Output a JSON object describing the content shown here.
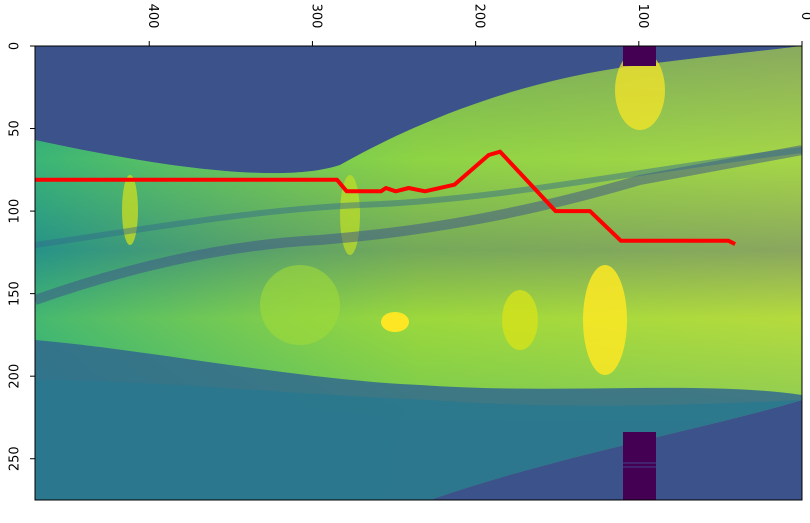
{
  "chart_data": {
    "type": "heatmap",
    "title": "",
    "xlabel": "",
    "ylabel": "",
    "colormap": "viridis",
    "xlim": [
      0,
      470
    ],
    "ylim": [
      275,
      0
    ],
    "x_axis_position": "top",
    "x_tick_labels_rotated_deg": 180,
    "x_ticks": [
      0,
      100,
      200,
      300,
      400
    ],
    "y_ticks": [
      0,
      50,
      100,
      150,
      200,
      250
    ],
    "grid": false,
    "legend": "none",
    "trace": {
      "color": "#ff0000",
      "points": [
        [
          470,
          81
        ],
        [
          285,
          81
        ],
        [
          279,
          88
        ],
        [
          258,
          88
        ],
        [
          255,
          86
        ],
        [
          249,
          88
        ],
        [
          241,
          86
        ],
        [
          231,
          88
        ],
        [
          213,
          84
        ],
        [
          192,
          66
        ],
        [
          185,
          64
        ],
        [
          151,
          100
        ],
        [
          130,
          100
        ],
        [
          111,
          118
        ],
        [
          45,
          118
        ],
        [
          41,
          120
        ]
      ]
    },
    "vertical_band": {
      "x_range": [
        90,
        110
      ],
      "y_visible": [
        [
          0,
          12
        ],
        [
          235,
          275
        ]
      ],
      "color": "#440154"
    }
  }
}
